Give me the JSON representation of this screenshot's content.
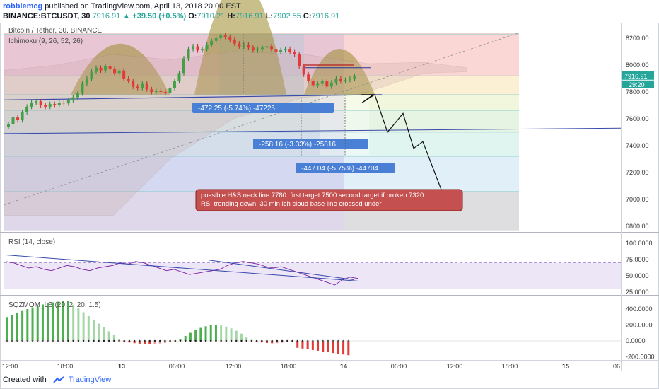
{
  "header": {
    "user": "robbiemcg",
    "published": "published on TradingView.com, April 13, 2018 20:00 EST",
    "symbol": "BINANCE:BTCUSDT, 30",
    "last": "7916.91",
    "change": "▲ +39.50 (+0.5%)",
    "o_label": "O:",
    "o_value": "7910.21",
    "h_label": "H:",
    "h_value": "7916.91",
    "l_label": "L:",
    "l_value": "7902.55",
    "c_label": "C:",
    "c_value": "7916.91"
  },
  "price_pane": {
    "title": "Bitcoin / Tether, 30, BINANCE",
    "indicator": "Ichimoku (9, 26, 52, 26)",
    "price_badge": "7916.91",
    "time_badge": "29:20",
    "y_ticks": [
      "8200.00",
      "8000.00",
      "7800.00",
      "7600.00",
      "7400.00",
      "7200.00",
      "7000.00",
      "6800.00"
    ],
    "measure_labels": [
      "-472.25 (-5.74%) -47225",
      "-258.16 (-3.33%) -25816",
      "-447.04 (-5.75%) -44704"
    ],
    "note": [
      "possible H&S neck line 7780. first target 7500 second target if broken 7320.",
      "RSI trending down, 30 min ich cloud base line crossed under"
    ]
  },
  "rsi_pane": {
    "title": "RSI (14, close)",
    "y_ticks": [
      "100.0000",
      "75.0000",
      "50.0000",
      "25.0000"
    ]
  },
  "sqz_pane": {
    "title": "SQZMOM_LB (20, 2, 20, 1.5)",
    "y_ticks": [
      "400.0000",
      "200.0000",
      "0.0000",
      "-200.0000"
    ]
  },
  "x_axis": {
    "ticks": [
      "12:00",
      "18:00",
      "13",
      "06:00",
      "12:00",
      "18:00",
      "14",
      "06:00",
      "12:00",
      "18:00",
      "15",
      "06"
    ]
  },
  "footer": {
    "created_with": "Created with",
    "brand": "TradingView"
  },
  "colors": {
    "up": "#26a69a",
    "down": "#ef5350",
    "accent": "#2962ff"
  },
  "chart_data": {
    "type": "candlestick",
    "symbol": "BINANCE:BTCUSDT",
    "interval": "30",
    "ylim": [
      6750,
      8280
    ],
    "x_ticks": [
      "12:00",
      "18:00",
      "13",
      "06:00",
      "12:00",
      "18:00",
      "14",
      "06:00",
      "12:00",
      "18:00",
      "15",
      "06"
    ],
    "closes": [
      7560,
      7610,
      7590,
      7650,
      7690,
      7720,
      7730,
      7700,
      7690,
      7710,
      7705,
      7720,
      7715,
      7740,
      7760,
      7790,
      7860,
      7900,
      7950,
      7980,
      7960,
      7990,
      7970,
      7940,
      7960,
      7900,
      7880,
      7840,
      7830,
      7860,
      7820,
      7800,
      7810,
      7800,
      7790,
      7830,
      7880,
      7940,
      8050,
      8120,
      8140,
      8110,
      8120,
      8150,
      8180,
      8200,
      8220,
      8210,
      8190,
      8160,
      8140,
      8150,
      8130,
      8110,
      8120,
      8130,
      8140,
      8120,
      8100,
      8110,
      8120,
      8100,
      8080,
      7990,
      7930,
      7880,
      7850,
      7860,
      7880,
      7840,
      7870,
      7900,
      7880,
      7890,
      7900,
      7916.91
    ],
    "rsi_ticks": [
      100,
      75,
      50,
      25
    ],
    "sqzmom_ticks": [
      400,
      200,
      0,
      -200
    ],
    "neck_line": 7780,
    "first_target": 7500,
    "second_target": 7320,
    "measurements": [
      {
        "change": -472.25,
        "percent": -5.74
      },
      {
        "change": -258.16,
        "percent": -3.33
      },
      {
        "change": -447.04,
        "percent": -5.75
      }
    ]
  }
}
